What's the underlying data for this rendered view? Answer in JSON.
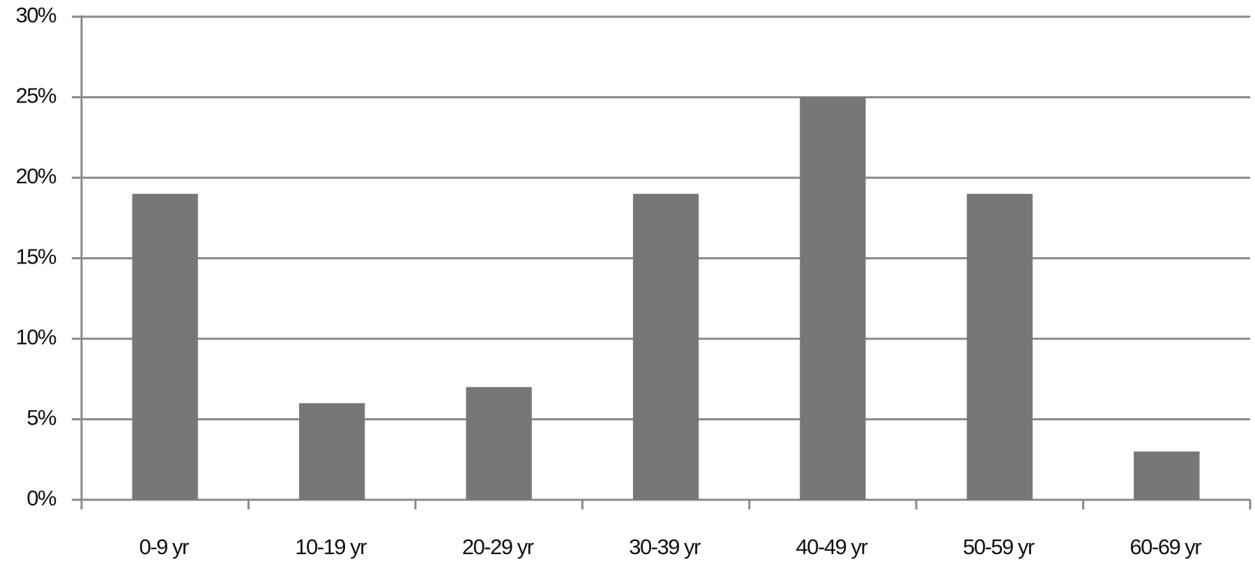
{
  "chart_data": {
    "type": "bar",
    "categories": [
      "0-9 yr",
      "10-19 yr",
      "20-29 yr",
      "30-39 yr",
      "40-49 yr",
      "50-59 yr",
      "60-69 yr"
    ],
    "values": [
      19,
      6,
      7,
      19,
      25,
      19,
      3
    ],
    "color": "#777777",
    "ylim": [
      0,
      30
    ],
    "yticks": [
      {
        "value": 0,
        "label": "0%"
      },
      {
        "value": 5,
        "label": "5%"
      },
      {
        "value": 10,
        "label": "10%"
      },
      {
        "value": 15,
        "label": "15%"
      },
      {
        "value": 20,
        "label": "20%"
      },
      {
        "value": 25,
        "label": "25%"
      },
      {
        "value": 30,
        "label": "30%"
      }
    ],
    "grid": true
  }
}
